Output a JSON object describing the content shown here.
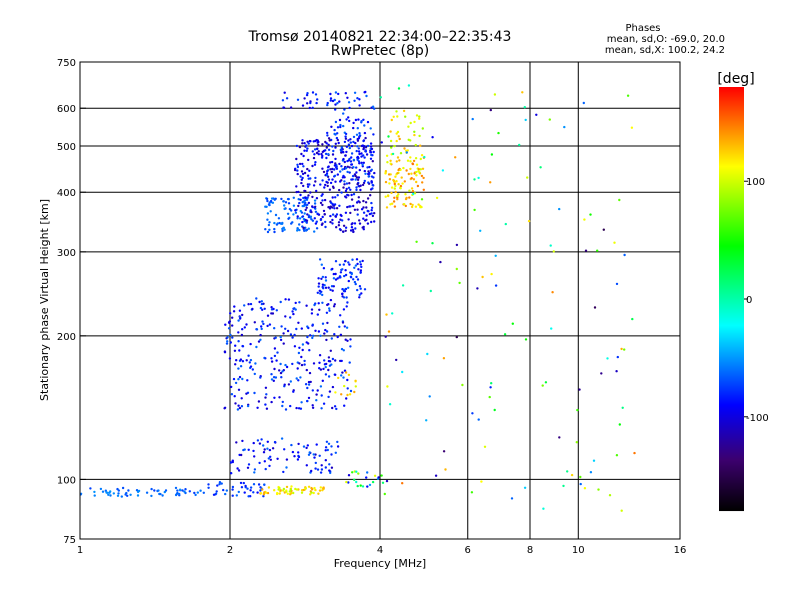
{
  "chart_data": {
    "type": "scatter",
    "title": "Tromsø 20140821 22:34:00–22:35:43",
    "subtitle": "RwPretec (8p)",
    "info": {
      "heading": "Phases",
      "line1": "mean, sd,O: -69.0, 20.0",
      "line2": "mean, sd,X: 100.2, 24.2"
    },
    "xlabel": "Frequency [MHz]",
    "ylabel": "Stationary phase Virtual Height [km]",
    "x_scale": "log",
    "y_scale": "log",
    "xlim": [
      1,
      16
    ],
    "ylim": [
      75,
      750
    ],
    "x_ticks": [
      "1",
      "2",
      "4",
      "6",
      "8",
      "10",
      "16"
    ],
    "y_ticks": [
      "75",
      "100",
      "200",
      "300",
      "400",
      "500",
      "600",
      "750"
    ],
    "x_grid": [
      2,
      4,
      6,
      8,
      10
    ],
    "y_grid": [
      100,
      200,
      300,
      400,
      500,
      600
    ],
    "grid": true,
    "colorbar": {
      "label": "[deg]",
      "range": [
        -180,
        180
      ],
      "ticks": [
        "100",
        "0",
        "-100"
      ]
    },
    "series": [
      {
        "clusters": [
          {
            "f": [
              1.0,
              1.75
            ],
            "h": [
              92,
              96
            ],
            "ph": [
              -75,
              -50
            ],
            "n": 60
          },
          {
            "f": [
              1.75,
              2.35
            ],
            "h": [
              92,
              99
            ],
            "ph": [
              -90,
              -60
            ],
            "n": 40
          },
          {
            "f": [
              2.3,
              3.1
            ],
            "h": [
              93,
              97
            ],
            "ph": [
              110,
              140
            ],
            "n": 45
          },
          {
            "f": [
              2.5,
              3.0
            ],
            "h": [
              93,
              96
            ],
            "ph": [
              90,
              110
            ],
            "n": 15
          },
          {
            "f": [
              2.0,
              3.3
            ],
            "h": [
              103,
              122
            ],
            "ph": [
              -110,
              -60
            ],
            "n": 90
          },
          {
            "f": [
              1.95,
              3.5
            ],
            "h": [
              140,
              240
            ],
            "ph": [
              -110,
              -60
            ],
            "n": 320
          },
          {
            "f": [
              3.2,
              3.6
            ],
            "h": [
              150,
              170
            ],
            "ph": [
              100,
              140
            ],
            "n": 12
          },
          {
            "f": [
              3.0,
              3.75
            ],
            "h": [
              240,
              290
            ],
            "ph": [
              -100,
              -60
            ],
            "n": 90
          },
          {
            "f": [
              2.35,
              3.0
            ],
            "h": [
              330,
              390
            ],
            "ph": [
              -75,
              -55
            ],
            "n": 110
          },
          {
            "f": [
              2.7,
              3.9
            ],
            "h": [
              330,
              520
            ],
            "ph": [
              -120,
              -75
            ],
            "n": 380
          },
          {
            "f": [
              3.1,
              3.9
            ],
            "h": [
              420,
              650
            ],
            "ph": [
              -100,
              -60
            ],
            "n": 140
          },
          {
            "f": [
              2.55,
              3.0
            ],
            "h": [
              600,
              650
            ],
            "ph": [
              -110,
              -70
            ],
            "n": 20
          },
          {
            "f": [
              4.1,
              4.9
            ],
            "h": [
              370,
              480
            ],
            "ph": [
              100,
              150
            ],
            "n": 110
          },
          {
            "f": [
              4.2,
              4.9
            ],
            "h": [
              480,
              600
            ],
            "ph": [
              80,
              140
            ],
            "n": 35
          },
          {
            "f": [
              3.4,
              4.1
            ],
            "h": [
              96,
              104
            ],
            "ph": [
              -110,
              130
            ],
            "n": 22
          },
          {
            "f": [
              4.0,
              13.0
            ],
            "h": [
              85,
              700
            ],
            "ph": [
              -150,
              150
            ],
            "n": 130
          }
        ]
      }
    ]
  }
}
